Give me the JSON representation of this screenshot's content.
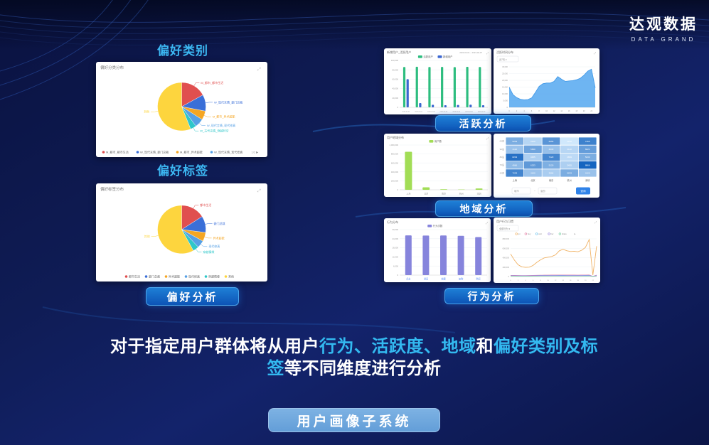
{
  "logo": {
    "title": "达观数据",
    "subtitle": "DATA GRAND"
  },
  "icons": {
    "expand": "⤢",
    "caret": "▾",
    "pager_next": "▶"
  },
  "left": {
    "category_title": "偏好类别",
    "tag_title": "偏好标签",
    "preference_button": "偏好分析"
  },
  "right": {
    "activity_button": "活跃分析",
    "region_button": "地域分析",
    "behavior_button": "行为分析"
  },
  "footer": {
    "segments": [
      {
        "text": "对于指定用户群体将从用户",
        "highlight": false
      },
      {
        "text": "行为、",
        "highlight": true
      },
      {
        "text": "活跃度、",
        "highlight": true
      },
      {
        "text": "地域",
        "highlight": true
      },
      {
        "text": "和",
        "highlight": false
      },
      {
        "text": "偏好类别及标签",
        "highlight": true
      },
      {
        "text": "等不同维度进行分析",
        "highlight": false
      }
    ],
    "system_button": "用户画像子系统"
  },
  "chart_data": [
    {
      "id": "pie-category",
      "type": "pie",
      "title": "偏好分类分布",
      "slices": [
        {
          "label": "M_都市_都市生活",
          "value": 17,
          "color": "#e04f4f"
        },
        {
          "label": "W_现代言情_豪门总裁",
          "value": 11,
          "color": "#3a6fd8"
        },
        {
          "label": "M_都市_异术超能",
          "value": 6,
          "color": "#f5a623"
        },
        {
          "label": "W_现代言情_现代修真",
          "value": 6,
          "color": "#56a0e5"
        },
        {
          "label": "W_古代言情_穿越时空",
          "value": 4,
          "color": "#2ec7c9"
        },
        {
          "label": "其他",
          "value": 56,
          "color": "#fdd53e"
        }
      ],
      "legend": {
        "items": [
          {
            "label": "M_都市_都市生活",
            "color": "#e04f4f"
          },
          {
            "label": "W_现代言情_豪门总裁",
            "color": "#3a6fd8"
          },
          {
            "label": "M_都市_异术超能",
            "color": "#f5a623"
          },
          {
            "label": "W_现代言情_现代修真",
            "color": "#56a0e5"
          }
        ],
        "pagination": "1/2 ▶"
      }
    },
    {
      "id": "pie-tag",
      "type": "pie",
      "title": "偏好标签分布",
      "slices": [
        {
          "label": "都市生活",
          "value": 16,
          "color": "#e04f4f"
        },
        {
          "label": "豪门总裁",
          "value": 11,
          "color": "#3a6fd8"
        },
        {
          "label": "异术超能",
          "value": 6,
          "color": "#f5a623"
        },
        {
          "label": "现代修真",
          "value": 5,
          "color": "#56a0e5"
        },
        {
          "label": "穿越情缘",
          "value": 4,
          "color": "#2ec7c9"
        },
        {
          "label": "其他",
          "value": 58,
          "color": "#fdd53e"
        }
      ],
      "legend": {
        "items": [
          {
            "label": "都市生活",
            "color": "#e04f4f"
          },
          {
            "label": "豪门总裁",
            "color": "#3a6fd8"
          },
          {
            "label": "异术超能",
            "color": "#f5a623"
          },
          {
            "label": "现代修真",
            "color": "#56a0e5"
          },
          {
            "label": "穿越情缘",
            "color": "#2ec7c9"
          },
          {
            "label": "其他",
            "color": "#fdd53e"
          }
        ],
        "pagination": ""
      }
    },
    {
      "id": "bar-active",
      "type": "bar",
      "title": "新增用户_活跃用户",
      "subtitle": "2023-02-01 ~ 2023-02-07",
      "categories": [
        "2023-02-01",
        "2023-02-02",
        "2023-02-03",
        "2023-02-04",
        "2023-02-05",
        "2023-02-06",
        "2023-02-07"
      ],
      "series": [
        {
          "name": "活跃用户",
          "color": "#2dbd7f",
          "values": [
            86000,
            86500,
            86000,
            86200,
            85800,
            86300,
            86000
          ]
        },
        {
          "name": "新增用户",
          "color": "#3a66d0",
          "values": [
            60000,
            9000,
            5500,
            4500,
            5200,
            5600,
            4600
          ]
        }
      ],
      "ylim": [
        0,
        100000
      ]
    },
    {
      "id": "area-time",
      "type": "area",
      "title": "活跃时间分布",
      "dropdown": "近7天",
      "color": "#55a8f0",
      "line_color": "#3d97e8",
      "x": [
        0,
        1,
        2,
        3,
        4,
        5,
        6,
        7,
        8,
        9,
        10,
        11,
        12,
        13,
        14,
        15,
        16,
        17,
        18,
        19,
        20,
        21,
        22,
        23
      ],
      "values": [
        15000,
        9500,
        7200,
        6000,
        5600,
        5800,
        7000,
        11000,
        15500,
        17500,
        18000,
        18000,
        19200,
        22800,
        20800,
        19200,
        19500,
        19800,
        20400,
        21500,
        23800,
        26800,
        28200,
        14500
      ],
      "ylim": [
        0,
        30000
      ]
    },
    {
      "id": "bar-region",
      "type": "bar",
      "title": "用户地域分布",
      "categories": [
        "上海",
        "北京",
        "南京",
        "杭州",
        "深圳"
      ],
      "series": [
        {
          "name": "用户数",
          "color": "#a2dd56",
          "values": [
            850000,
            55000,
            12000,
            6000,
            30000
          ]
        }
      ],
      "ylim": [
        0,
        1000000
      ]
    },
    {
      "id": "heatmap-region",
      "type": "heatmap",
      "rows": [
        "00后",
        "90后",
        "80后",
        "70后",
        "60后"
      ],
      "cols": [
        "上海",
        "北京",
        "南京",
        "杭州",
        "深圳"
      ],
      "values": [
        [
          5233,
          3120,
          6455,
          2210,
          7455
        ],
        [
          4120,
          5660,
          4233,
          3110,
          6021
        ],
        [
          8233,
          3455,
          7120,
          2899,
          5233
        ],
        [
          4566,
          6233,
          5120,
          3455,
          8866
        ],
        [
          7233,
          4120,
          3566,
          5233,
          4120
        ]
      ],
      "filter": {
        "field1": "城市",
        "sep": "~",
        "field2": "省份",
        "submit": "查询"
      }
    },
    {
      "id": "bar-behavior",
      "type": "bar",
      "title": "行为分布",
      "categories": [
        "点击",
        "浏览",
        "收藏",
        "加购",
        "购买"
      ],
      "series": [
        {
          "name": "行为次数",
          "color": "#8684dc",
          "values": [
            26200,
            26100,
            26150,
            25900,
            25100
          ]
        }
      ],
      "ylim": [
        0,
        30000
      ]
    },
    {
      "id": "line-behavior",
      "type": "line",
      "title": "用户行为习惯",
      "dropdown": "全部行为",
      "x": [
        0,
        1,
        2,
        3,
        4,
        5,
        6,
        7,
        8,
        9,
        10,
        11,
        12,
        13,
        14,
        15,
        16,
        17,
        18,
        19,
        20,
        21,
        22,
        23
      ],
      "series": [
        {
          "name": "pv",
          "color": "#f0b264",
          "width": 0.9,
          "values": [
            480000,
            350000,
            250000,
            205000,
            195000,
            200000,
            235000,
            300000,
            355000,
            395000,
            410000,
            425000,
            460000,
            545000,
            580000,
            548000,
            532000,
            538000,
            526000,
            558000,
            618000,
            785000,
            30000,
            645000
          ]
        },
        {
          "name": "buy",
          "color": "#e583a8",
          "values": [
            26000,
            24000,
            22000,
            21000,
            21000,
            22000,
            24000,
            27000,
            29000,
            30000,
            30000,
            31000,
            31000,
            32000,
            32000,
            31000,
            31000,
            31000,
            30000,
            31000,
            33000,
            35000,
            5000,
            30000
          ]
        },
        {
          "name": "cart",
          "color": "#6cc4ee",
          "values": [
            15000,
            14000,
            13000,
            12000,
            12000,
            13000,
            14000,
            16000,
            17000,
            18000,
            18000,
            18000,
            18000,
            19000,
            19000,
            18000,
            18000,
            18000,
            18000,
            18000,
            19000,
            21000,
            3000,
            18000
          ]
        },
        {
          "name": "fav",
          "color": "#9b8ae0",
          "values": [
            20000,
            19000,
            18000,
            17000,
            17000,
            18000,
            19000,
            21000,
            22000,
            23000,
            23000,
            23000,
            23000,
            24000,
            24000,
            23000,
            23000,
            23000,
            23000,
            23000,
            24000,
            26000,
            4000,
            23000
          ]
        },
        {
          "name": "share",
          "color": "#79d2a5",
          "values": [
            9000,
            8500,
            8000,
            7500,
            7500,
            8000,
            8500,
            9500,
            10000,
            10500,
            10500,
            10500,
            10500,
            11000,
            11000,
            10500,
            10500,
            10500,
            10500,
            10500,
            11000,
            12000,
            2000,
            10500
          ]
        }
      ],
      "ylim": [
        0,
        800000
      ]
    }
  ]
}
